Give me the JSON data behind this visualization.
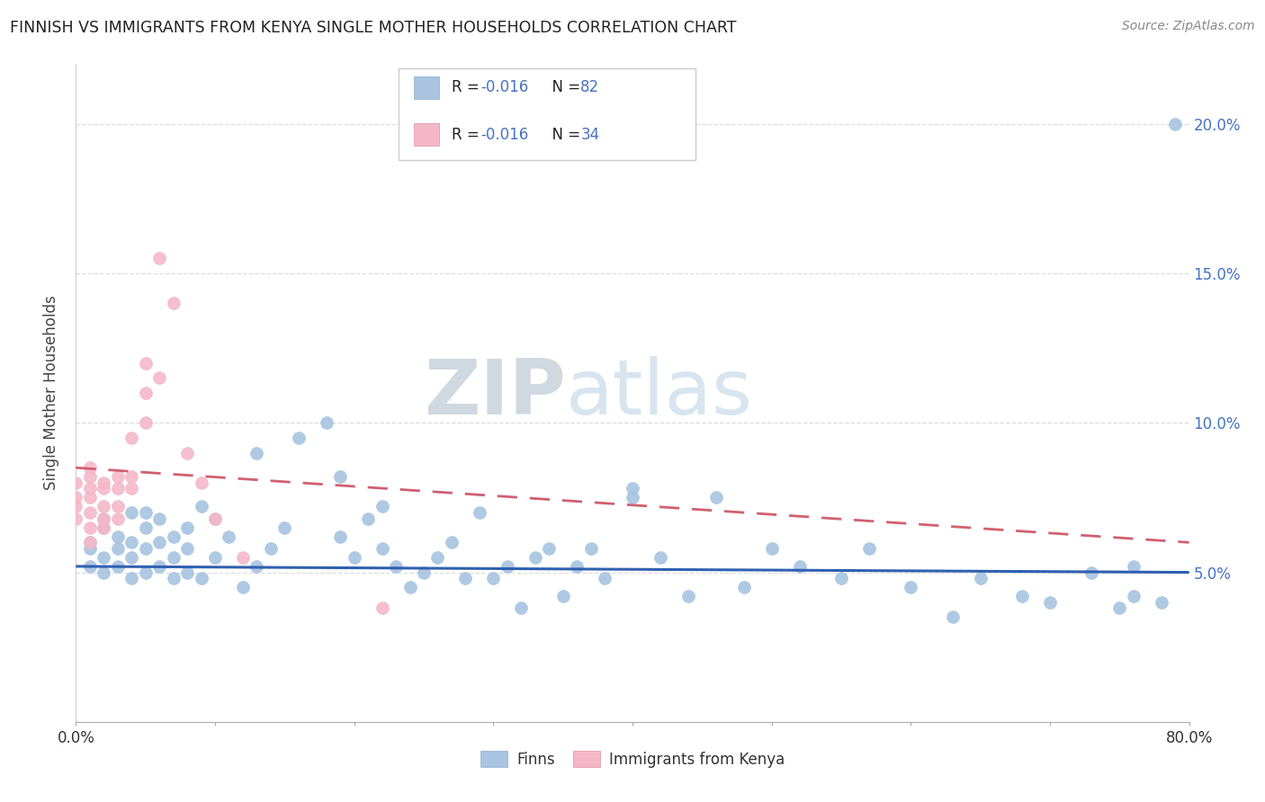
{
  "title": "FINNISH VS IMMIGRANTS FROM KENYA SINGLE MOTHER HOUSEHOLDS CORRELATION CHART",
  "source": "Source: ZipAtlas.com",
  "ylabel": "Single Mother Households",
  "xlim": [
    0.0,
    0.8
  ],
  "ylim": [
    0.0,
    0.22
  ],
  "yticks": [
    0.05,
    0.1,
    0.15,
    0.2
  ],
  "ytick_labels": [
    "5.0%",
    "10.0%",
    "15.0%",
    "20.0%"
  ],
  "finns_color": "#a8c4e0",
  "kenya_color": "#f4b8c8",
  "finns_line_color": "#3060b0",
  "kenya_line_color": "#d06070",
  "watermark_zip": "ZIP",
  "watermark_atlas": "atlas",
  "finns_x": [
    0.01,
    0.01,
    0.01,
    0.02,
    0.02,
    0.02,
    0.02,
    0.03,
    0.03,
    0.03,
    0.04,
    0.04,
    0.04,
    0.04,
    0.05,
    0.05,
    0.05,
    0.05,
    0.06,
    0.06,
    0.06,
    0.07,
    0.07,
    0.07,
    0.08,
    0.08,
    0.08,
    0.09,
    0.09,
    0.1,
    0.1,
    0.11,
    0.12,
    0.13,
    0.14,
    0.15,
    0.16,
    0.18,
    0.19,
    0.2,
    0.21,
    0.22,
    0.23,
    0.24,
    0.25,
    0.26,
    0.27,
    0.28,
    0.29,
    0.3,
    0.31,
    0.32,
    0.33,
    0.34,
    0.35,
    0.36,
    0.37,
    0.38,
    0.4,
    0.42,
    0.44,
    0.46,
    0.48,
    0.5,
    0.52,
    0.55,
    0.57,
    0.6,
    0.63,
    0.65,
    0.68,
    0.7,
    0.73,
    0.75,
    0.76,
    0.76,
    0.78,
    0.79,
    0.13,
    0.19,
    0.22,
    0.4
  ],
  "finns_y": [
    0.052,
    0.058,
    0.06,
    0.05,
    0.055,
    0.065,
    0.068,
    0.052,
    0.058,
    0.062,
    0.048,
    0.055,
    0.06,
    0.07,
    0.05,
    0.058,
    0.065,
    0.07,
    0.052,
    0.06,
    0.068,
    0.048,
    0.055,
    0.062,
    0.05,
    0.058,
    0.065,
    0.048,
    0.072,
    0.055,
    0.068,
    0.062,
    0.045,
    0.052,
    0.058,
    0.065,
    0.095,
    0.1,
    0.062,
    0.055,
    0.068,
    0.058,
    0.052,
    0.045,
    0.05,
    0.055,
    0.06,
    0.048,
    0.07,
    0.048,
    0.052,
    0.038,
    0.055,
    0.058,
    0.042,
    0.052,
    0.058,
    0.048,
    0.075,
    0.055,
    0.042,
    0.075,
    0.045,
    0.058,
    0.052,
    0.048,
    0.058,
    0.045,
    0.035,
    0.048,
    0.042,
    0.04,
    0.05,
    0.038,
    0.052,
    0.042,
    0.04,
    0.2,
    0.09,
    0.082,
    0.072,
    0.078
  ],
  "kenya_x": [
    0.0,
    0.0,
    0.0,
    0.0,
    0.01,
    0.01,
    0.01,
    0.01,
    0.01,
    0.01,
    0.01,
    0.02,
    0.02,
    0.02,
    0.02,
    0.02,
    0.03,
    0.03,
    0.03,
    0.03,
    0.04,
    0.04,
    0.04,
    0.05,
    0.05,
    0.05,
    0.06,
    0.06,
    0.07,
    0.08,
    0.09,
    0.1,
    0.12,
    0.22
  ],
  "kenya_y": [
    0.068,
    0.072,
    0.075,
    0.08,
    0.06,
    0.065,
    0.07,
    0.075,
    0.078,
    0.082,
    0.085,
    0.065,
    0.068,
    0.072,
    0.078,
    0.08,
    0.068,
    0.072,
    0.078,
    0.082,
    0.078,
    0.082,
    0.095,
    0.1,
    0.11,
    0.12,
    0.115,
    0.155,
    0.14,
    0.09,
    0.08,
    0.068,
    0.055,
    0.038
  ],
  "finns_line_y0": 0.052,
  "finns_line_y1": 0.05,
  "kenya_line_y0": 0.085,
  "kenya_line_y1": 0.06
}
